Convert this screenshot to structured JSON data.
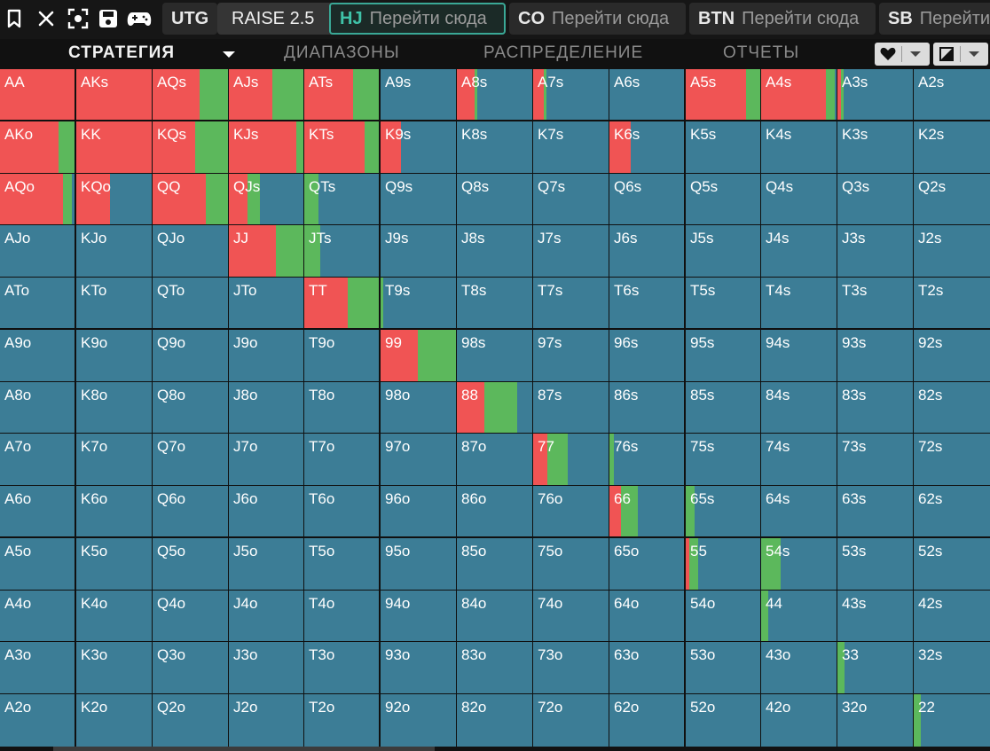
{
  "toolbar": {
    "icons": [
      "bookmark-icon",
      "close-icon",
      "focus-icon",
      "save-icon",
      "gamepad-icon"
    ]
  },
  "positions": [
    {
      "name": "UTG",
      "action": ""
    },
    {
      "name": "",
      "action": "RAISE 2.5"
    },
    {
      "name": "HJ",
      "action": "Перейти сюда"
    },
    {
      "name": "CO",
      "action": "Перейти сюда"
    },
    {
      "name": "BTN",
      "action": "Перейти сюда"
    },
    {
      "name": "SB",
      "action": "Перейти сюда"
    }
  ],
  "tabs": {
    "strategy": "СТРАТЕГИЯ",
    "ranges": "ДИАПАЗОНЫ",
    "distribution": "РАСПРЕДЕЛЕНИЕ",
    "reports": "ОТЧЕТЫ"
  },
  "controls": {
    "heart_icon": "heart-icon",
    "layout_icon": "layout-icon",
    "caret_icon": "chevron-down-icon"
  },
  "colors": {
    "raise": "#f05454",
    "call": "#5cb85c",
    "fold": "#3c7d96"
  },
  "hands": [
    [
      {
        "l": "AA",
        "r": 1.0,
        "c": 0.0
      },
      {
        "l": "AKs",
        "r": 1.0,
        "c": 0.0
      },
      {
        "l": "AQs",
        "r": 0.62,
        "c": 0.38
      },
      {
        "l": "AJs",
        "r": 0.58,
        "c": 0.42
      },
      {
        "l": "ATs",
        "r": 0.65,
        "c": 0.35
      },
      {
        "l": "A9s",
        "r": 0.0,
        "c": 0.0
      },
      {
        "l": "A8s",
        "r": 0.24,
        "c": 0.01
      },
      {
        "l": "A7s",
        "r": 0.14,
        "c": 0.01
      },
      {
        "l": "A6s",
        "r": 0.0,
        "c": 0.0
      },
      {
        "l": "A5s",
        "r": 0.81,
        "c": 0.19
      },
      {
        "l": "A4s",
        "r": 0.86,
        "c": 0.12
      },
      {
        "l": "A3s",
        "r": 0.05,
        "c": 0.02
      },
      {
        "l": "A2s",
        "r": 0.0,
        "c": 0.0
      }
    ],
    [
      {
        "l": "AKo",
        "r": 0.78,
        "c": 0.22
      },
      {
        "l": "KK",
        "r": 1.0,
        "c": 0.0
      },
      {
        "l": "KQs",
        "r": 0.57,
        "c": 0.43
      },
      {
        "l": "KJs",
        "r": 0.9,
        "c": 0.1
      },
      {
        "l": "KTs",
        "r": 0.81,
        "c": 0.19
      },
      {
        "l": "K9s",
        "r": 0.27,
        "c": 0.0
      },
      {
        "l": "K8s",
        "r": 0.0,
        "c": 0.0
      },
      {
        "l": "K7s",
        "r": 0.0,
        "c": 0.0
      },
      {
        "l": "K6s",
        "r": 0.28,
        "c": 0.0
      },
      {
        "l": "K5s",
        "r": 0.0,
        "c": 0.0
      },
      {
        "l": "K4s",
        "r": 0.0,
        "c": 0.0
      },
      {
        "l": "K3s",
        "r": 0.0,
        "c": 0.0
      },
      {
        "l": "K2s",
        "r": 0.0,
        "c": 0.0
      }
    ],
    [
      {
        "l": "AQo",
        "r": 0.84,
        "c": 0.12
      },
      {
        "l": "KQo",
        "r": 0.45,
        "c": 0.0
      },
      {
        "l": "QQ",
        "r": 0.71,
        "c": 0.29
      },
      {
        "l": "QJs",
        "r": 0.25,
        "c": 0.17
      },
      {
        "l": "QTs",
        "r": 0.0,
        "c": 0.19
      },
      {
        "l": "Q9s",
        "r": 0.0,
        "c": 0.0
      },
      {
        "l": "Q8s",
        "r": 0.0,
        "c": 0.0
      },
      {
        "l": "Q7s",
        "r": 0.0,
        "c": 0.0
      },
      {
        "l": "Q6s",
        "r": 0.0,
        "c": 0.0
      },
      {
        "l": "Q5s",
        "r": 0.0,
        "c": 0.0
      },
      {
        "l": "Q4s",
        "r": 0.0,
        "c": 0.0
      },
      {
        "l": "Q3s",
        "r": 0.0,
        "c": 0.0
      },
      {
        "l": "Q2s",
        "r": 0.0,
        "c": 0.0
      }
    ],
    [
      {
        "l": "AJo",
        "r": 0.0,
        "c": 0.0
      },
      {
        "l": "KJo",
        "r": 0.0,
        "c": 0.0
      },
      {
        "l": "QJo",
        "r": 0.0,
        "c": 0.0
      },
      {
        "l": "JJ",
        "r": 0.63,
        "c": 0.37
      },
      {
        "l": "JTs",
        "r": 0.0,
        "c": 0.21
      },
      {
        "l": "J9s",
        "r": 0.0,
        "c": 0.0
      },
      {
        "l": "J8s",
        "r": 0.0,
        "c": 0.0
      },
      {
        "l": "J7s",
        "r": 0.0,
        "c": 0.0
      },
      {
        "l": "J6s",
        "r": 0.0,
        "c": 0.0
      },
      {
        "l": "J5s",
        "r": 0.0,
        "c": 0.0
      },
      {
        "l": "J4s",
        "r": 0.0,
        "c": 0.0
      },
      {
        "l": "J3s",
        "r": 0.0,
        "c": 0.0
      },
      {
        "l": "J2s",
        "r": 0.0,
        "c": 0.0
      }
    ],
    [
      {
        "l": "ATo",
        "r": 0.0,
        "c": 0.0
      },
      {
        "l": "KTo",
        "r": 0.0,
        "c": 0.0
      },
      {
        "l": "QTo",
        "r": 0.0,
        "c": 0.0
      },
      {
        "l": "JTo",
        "r": 0.0,
        "c": 0.0
      },
      {
        "l": "TT",
        "r": 0.58,
        "c": 0.42
      },
      {
        "l": "T9s",
        "r": 0.0,
        "c": 0.03
      },
      {
        "l": "T8s",
        "r": 0.0,
        "c": 0.0
      },
      {
        "l": "T7s",
        "r": 0.0,
        "c": 0.0
      },
      {
        "l": "T6s",
        "r": 0.0,
        "c": 0.0
      },
      {
        "l": "T5s",
        "r": 0.0,
        "c": 0.0
      },
      {
        "l": "T4s",
        "r": 0.0,
        "c": 0.0
      },
      {
        "l": "T3s",
        "r": 0.0,
        "c": 0.0
      },
      {
        "l": "T2s",
        "r": 0.0,
        "c": 0.0
      }
    ],
    [
      {
        "l": "A9o",
        "r": 0.0,
        "c": 0.0
      },
      {
        "l": "K9o",
        "r": 0.0,
        "c": 0.0
      },
      {
        "l": "Q9o",
        "r": 0.0,
        "c": 0.0
      },
      {
        "l": "J9o",
        "r": 0.0,
        "c": 0.0
      },
      {
        "l": "T9o",
        "r": 0.0,
        "c": 0.0
      },
      {
        "l": "99",
        "r": 0.49,
        "c": 0.51
      },
      {
        "l": "98s",
        "r": 0.0,
        "c": 0.0
      },
      {
        "l": "97s",
        "r": 0.0,
        "c": 0.0
      },
      {
        "l": "96s",
        "r": 0.0,
        "c": 0.0
      },
      {
        "l": "95s",
        "r": 0.0,
        "c": 0.0
      },
      {
        "l": "94s",
        "r": 0.0,
        "c": 0.0
      },
      {
        "l": "93s",
        "r": 0.0,
        "c": 0.0
      },
      {
        "l": "92s",
        "r": 0.0,
        "c": 0.0
      }
    ],
    [
      {
        "l": "A8o",
        "r": 0.0,
        "c": 0.0
      },
      {
        "l": "K8o",
        "r": 0.0,
        "c": 0.0
      },
      {
        "l": "Q8o",
        "r": 0.0,
        "c": 0.0
      },
      {
        "l": "J8o",
        "r": 0.0,
        "c": 0.0
      },
      {
        "l": "T8o",
        "r": 0.0,
        "c": 0.0
      },
      {
        "l": "98o",
        "r": 0.0,
        "c": 0.0
      },
      {
        "l": "88",
        "r": 0.36,
        "c": 0.44
      },
      {
        "l": "87s",
        "r": 0.0,
        "c": 0.0
      },
      {
        "l": "86s",
        "r": 0.0,
        "c": 0.0
      },
      {
        "l": "85s",
        "r": 0.0,
        "c": 0.0
      },
      {
        "l": "84s",
        "r": 0.0,
        "c": 0.0
      },
      {
        "l": "83s",
        "r": 0.0,
        "c": 0.0
      },
      {
        "l": "82s",
        "r": 0.0,
        "c": 0.0
      }
    ],
    [
      {
        "l": "A7o",
        "r": 0.0,
        "c": 0.0
      },
      {
        "l": "K7o",
        "r": 0.0,
        "c": 0.0
      },
      {
        "l": "Q7o",
        "r": 0.0,
        "c": 0.0
      },
      {
        "l": "J7o",
        "r": 0.0,
        "c": 0.0
      },
      {
        "l": "T7o",
        "r": 0.0,
        "c": 0.0
      },
      {
        "l": "97o",
        "r": 0.0,
        "c": 0.0
      },
      {
        "l": "87o",
        "r": 0.0,
        "c": 0.0
      },
      {
        "l": "77",
        "r": 0.19,
        "c": 0.27
      },
      {
        "l": "76s",
        "r": 0.0,
        "c": 0.06
      },
      {
        "l": "75s",
        "r": 0.0,
        "c": 0.0
      },
      {
        "l": "74s",
        "r": 0.0,
        "c": 0.0
      },
      {
        "l": "73s",
        "r": 0.0,
        "c": 0.0
      },
      {
        "l": "72s",
        "r": 0.0,
        "c": 0.0
      }
    ],
    [
      {
        "l": "A6o",
        "r": 0.0,
        "c": 0.0
      },
      {
        "l": "K6o",
        "r": 0.0,
        "c": 0.0
      },
      {
        "l": "Q6o",
        "r": 0.0,
        "c": 0.0
      },
      {
        "l": "J6o",
        "r": 0.0,
        "c": 0.0
      },
      {
        "l": "T6o",
        "r": 0.0,
        "c": 0.0
      },
      {
        "l": "96o",
        "r": 0.0,
        "c": 0.0
      },
      {
        "l": "86o",
        "r": 0.0,
        "c": 0.0
      },
      {
        "l": "76o",
        "r": 0.0,
        "c": 0.0
      },
      {
        "l": "66",
        "r": 0.16,
        "c": 0.23
      },
      {
        "l": "65s",
        "r": 0.0,
        "c": 0.12
      },
      {
        "l": "64s",
        "r": 0.0,
        "c": 0.0
      },
      {
        "l": "63s",
        "r": 0.0,
        "c": 0.0
      },
      {
        "l": "62s",
        "r": 0.0,
        "c": 0.0
      }
    ],
    [
      {
        "l": "A5o",
        "r": 0.0,
        "c": 0.0
      },
      {
        "l": "K5o",
        "r": 0.0,
        "c": 0.0
      },
      {
        "l": "Q5o",
        "r": 0.0,
        "c": 0.0
      },
      {
        "l": "J5o",
        "r": 0.0,
        "c": 0.0
      },
      {
        "l": "T5o",
        "r": 0.0,
        "c": 0.0
      },
      {
        "l": "95o",
        "r": 0.0,
        "c": 0.0
      },
      {
        "l": "85o",
        "r": 0.0,
        "c": 0.0
      },
      {
        "l": "75o",
        "r": 0.0,
        "c": 0.0
      },
      {
        "l": "65o",
        "r": 0.0,
        "c": 0.0
      },
      {
        "l": "55",
        "r": 0.05,
        "c": 0.12
      },
      {
        "l": "54s",
        "r": 0.0,
        "c": 0.26
      },
      {
        "l": "53s",
        "r": 0.0,
        "c": 0.0
      },
      {
        "l": "52s",
        "r": 0.0,
        "c": 0.0
      }
    ],
    [
      {
        "l": "A4o",
        "r": 0.0,
        "c": 0.0
      },
      {
        "l": "K4o",
        "r": 0.0,
        "c": 0.0
      },
      {
        "l": "Q4o",
        "r": 0.0,
        "c": 0.0
      },
      {
        "l": "J4o",
        "r": 0.0,
        "c": 0.0
      },
      {
        "l": "T4o",
        "r": 0.0,
        "c": 0.0
      },
      {
        "l": "94o",
        "r": 0.0,
        "c": 0.0
      },
      {
        "l": "84o",
        "r": 0.0,
        "c": 0.0
      },
      {
        "l": "74o",
        "r": 0.0,
        "c": 0.0
      },
      {
        "l": "64o",
        "r": 0.0,
        "c": 0.0
      },
      {
        "l": "54o",
        "r": 0.0,
        "c": 0.0
      },
      {
        "l": "44",
        "r": 0.0,
        "c": 0.09
      },
      {
        "l": "43s",
        "r": 0.0,
        "c": 0.0
      },
      {
        "l": "42s",
        "r": 0.0,
        "c": 0.0
      }
    ],
    [
      {
        "l": "A3o",
        "r": 0.0,
        "c": 0.0
      },
      {
        "l": "K3o",
        "r": 0.0,
        "c": 0.0
      },
      {
        "l": "Q3o",
        "r": 0.0,
        "c": 0.0
      },
      {
        "l": "J3o",
        "r": 0.0,
        "c": 0.0
      },
      {
        "l": "T3o",
        "r": 0.0,
        "c": 0.0
      },
      {
        "l": "93o",
        "r": 0.0,
        "c": 0.0
      },
      {
        "l": "83o",
        "r": 0.0,
        "c": 0.0
      },
      {
        "l": "73o",
        "r": 0.0,
        "c": 0.0
      },
      {
        "l": "63o",
        "r": 0.0,
        "c": 0.0
      },
      {
        "l": "53o",
        "r": 0.0,
        "c": 0.0
      },
      {
        "l": "43o",
        "r": 0.0,
        "c": 0.0
      },
      {
        "l": "33",
        "r": 0.0,
        "c": 0.09
      },
      {
        "l": "32s",
        "r": 0.0,
        "c": 0.0
      }
    ],
    [
      {
        "l": "A2o",
        "r": 0.0,
        "c": 0.0
      },
      {
        "l": "K2o",
        "r": 0.0,
        "c": 0.0
      },
      {
        "l": "Q2o",
        "r": 0.0,
        "c": 0.0
      },
      {
        "l": "J2o",
        "r": 0.0,
        "c": 0.0
      },
      {
        "l": "T2o",
        "r": 0.0,
        "c": 0.0
      },
      {
        "l": "92o",
        "r": 0.0,
        "c": 0.0
      },
      {
        "l": "82o",
        "r": 0.0,
        "c": 0.0
      },
      {
        "l": "72o",
        "r": 0.0,
        "c": 0.0
      },
      {
        "l": "62o",
        "r": 0.0,
        "c": 0.0
      },
      {
        "l": "52o",
        "r": 0.0,
        "c": 0.0
      },
      {
        "l": "42o",
        "r": 0.0,
        "c": 0.0
      },
      {
        "l": "32o",
        "r": 0.0,
        "c": 0.0
      },
      {
        "l": "22",
        "r": 0.0,
        "c": 0.09
      }
    ]
  ]
}
